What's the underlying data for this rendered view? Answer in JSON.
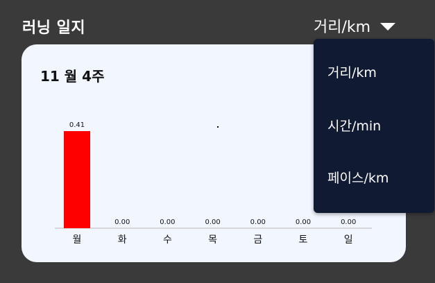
{
  "header": {
    "title": "러닝 일지",
    "metric_selected": "거리/km"
  },
  "card": {
    "week_title": "11 월 4주"
  },
  "dropdown": {
    "items": [
      "거리/km",
      "시간/min",
      "페이스/km"
    ]
  },
  "colors": {
    "bar_active": "#ff0000",
    "background": "#3a3a3a",
    "card": "#f2f6ff",
    "menu": "#111a33"
  },
  "chart_data": {
    "type": "bar",
    "categories": [
      "월",
      "화",
      "수",
      "목",
      "금",
      "토",
      "일"
    ],
    "values": [
      0.41,
      0.0,
      0.0,
      0.0,
      0.0,
      0.0,
      0.0
    ],
    "value_labels": [
      "0.41",
      "0.00",
      "0.00",
      "0.00",
      "0.00",
      "0.00",
      "0.00"
    ],
    "title": "",
    "xlabel": "",
    "ylabel": "",
    "ylim": [
      0,
      0.41
    ],
    "grid": false,
    "legend": "none"
  }
}
